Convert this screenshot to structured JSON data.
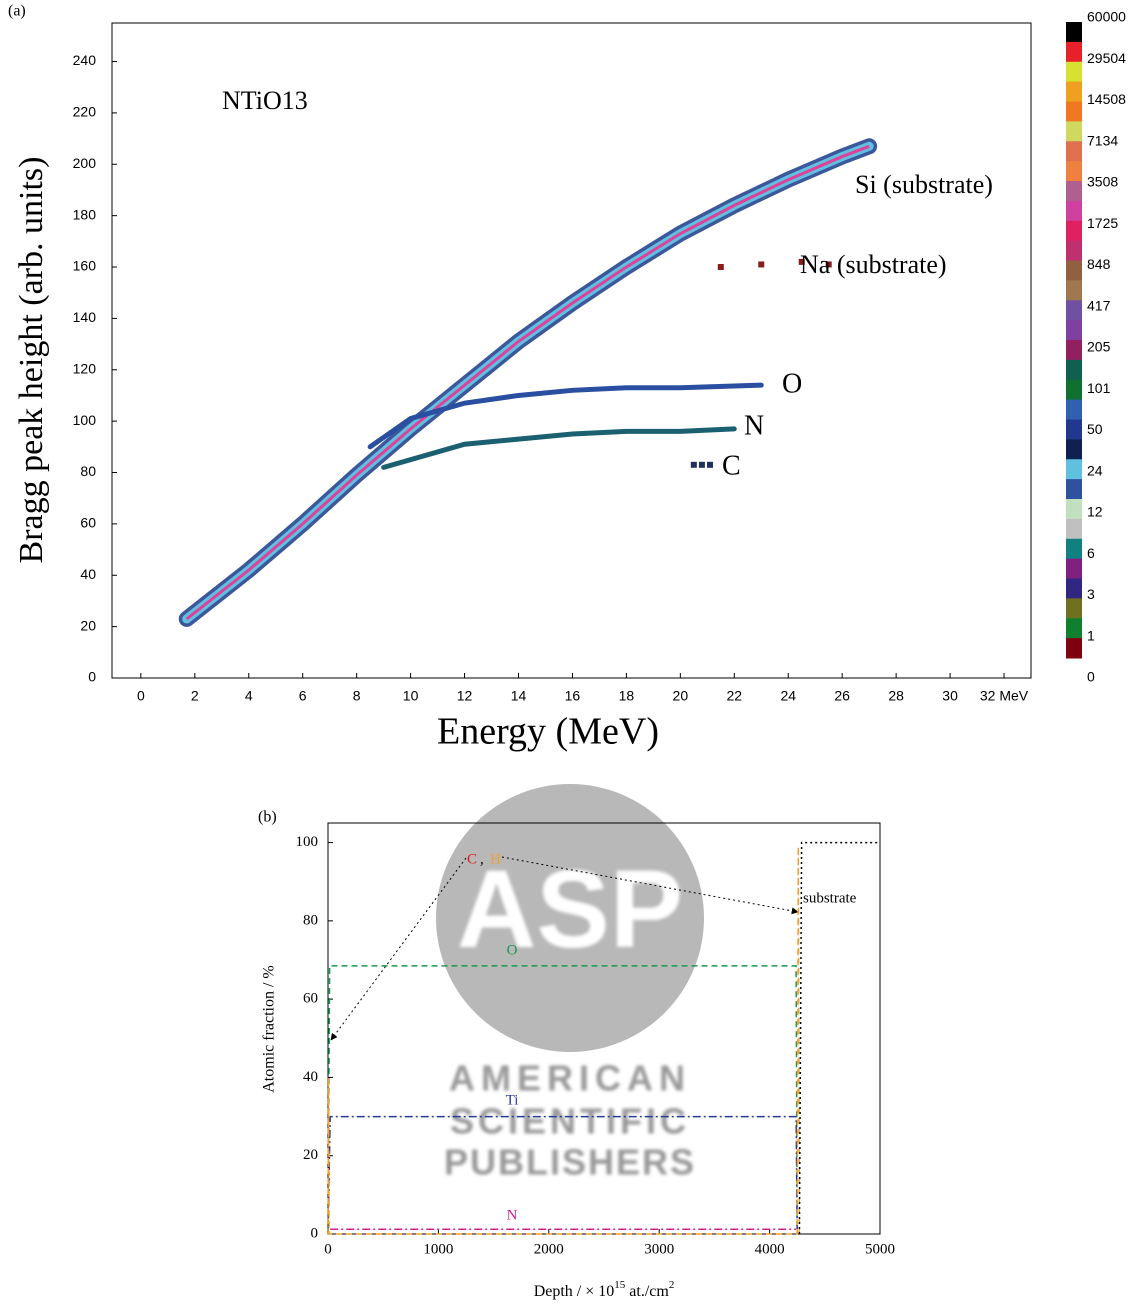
{
  "chart_data": [
    {
      "type": "histogram2d",
      "panel_label": "(a)",
      "sample": "NTiO13",
      "x_label": "Energy (MeV)",
      "y_label": "Bragg peak height (arb. units)",
      "xlim": [
        -1.07,
        33
      ],
      "ylim": [
        0,
        255
      ],
      "xticks": [
        0,
        2,
        4,
        6,
        8,
        10,
        12,
        14,
        16,
        18,
        20,
        22,
        24,
        26,
        28,
        30,
        {
          "value": 32,
          "label": "32 MeV"
        }
      ],
      "yticks": [
        0,
        20,
        40,
        60,
        80,
        100,
        120,
        140,
        160,
        180,
        200,
        220,
        240
      ],
      "series": [
        {
          "name": "Si (substrate)",
          "color": "#e0409a",
          "marker": "band",
          "x": [
            1.7,
            4,
            6,
            8,
            10,
            12,
            14,
            16,
            18,
            20,
            22,
            24,
            26,
            27
          ],
          "values": [
            23,
            42,
            60,
            79,
            97,
            114,
            131,
            146,
            160,
            173,
            184,
            194,
            203,
            207
          ]
        },
        {
          "name": "Na (substrate)",
          "color": "#8b1a1a",
          "marker": "square",
          "x": [
            21.5,
            23,
            24.5,
            25.5
          ],
          "values": [
            160,
            161,
            162,
            161
          ]
        },
        {
          "name": "O",
          "color": "#2a4fa0",
          "marker": "line",
          "x": [
            8.5,
            10,
            12,
            14,
            16,
            18,
            20,
            23
          ],
          "values": [
            90,
            101,
            107,
            110,
            112,
            113,
            113,
            114
          ]
        },
        {
          "name": "N",
          "color": "#1a6070",
          "marker": "line",
          "x": [
            9,
            12,
            14,
            16,
            18,
            20,
            22
          ],
          "values": [
            82,
            91,
            93,
            95,
            96,
            96,
            97
          ]
        },
        {
          "name": "C",
          "color": "#203060",
          "marker": "square",
          "x": [
            20.5,
            20.8,
            21.1
          ],
          "values": [
            83,
            83,
            83
          ]
        }
      ],
      "colorbar": {
        "ticks": [
          60000,
          29504,
          14508,
          7134,
          3508,
          1725,
          848,
          417,
          205,
          101,
          50,
          24,
          12,
          6,
          3,
          1,
          0
        ],
        "colors": [
          "#000000",
          "#e8202a",
          "#d8e030",
          "#f0a020",
          "#f07820",
          "#d0d860",
          "#e07050",
          "#f08040",
          "#b06090",
          "#d040a0",
          "#e02060",
          "#c03070",
          "#906040",
          "#a07850",
          "#7050a0",
          "#8040a0",
          "#902060",
          "#106050",
          "#107030",
          "#3060b0",
          "#203890",
          "#102050",
          "#60c0e0",
          "#3050a0",
          "#c0e0c0",
          "#c0c0c0",
          "#108080",
          "#802080",
          "#302880",
          "#707020",
          "#108030",
          "#800010"
        ]
      }
    },
    {
      "type": "line",
      "panel_label": "(b)",
      "x_label": [
        "Depth / × 10",
        "15",
        " at./cm",
        "2"
      ],
      "y_label": "Atomic fraction / %",
      "xlim": [
        0,
        5000
      ],
      "ylim": [
        0,
        105
      ],
      "xticks": [
        0,
        1000,
        2000,
        3000,
        4000,
        5000
      ],
      "yticks": [
        0,
        20,
        40,
        60,
        80,
        100
      ],
      "series": [
        {
          "name": "O",
          "color": "#1a9a50",
          "style": "dashed",
          "x": [
            0,
            15,
            4240,
            4250
          ],
          "values": [
            0,
            68.5,
            68.5,
            0
          ]
        },
        {
          "name": "Ti",
          "color": "#2a3a9a",
          "style": "dashdot",
          "x": [
            0,
            20,
            4240,
            4250
          ],
          "values": [
            0,
            30,
            30,
            0
          ]
        },
        {
          "name": "N",
          "color": "#d02090",
          "style": "dashdot",
          "x": [
            20,
            4240
          ],
          "values": [
            1.2,
            1.2
          ]
        },
        {
          "name": "H",
          "color": "#f0a030",
          "style": "dashed",
          "x": [
            0,
            5,
            10,
            4250,
            4260,
            4270
          ],
          "values": [
            0,
            40,
            0,
            0,
            99,
            0
          ]
        },
        {
          "name": "substrate",
          "color": "#000000",
          "style": "dotted",
          "x": [
            4270,
            4290,
            5000
          ],
          "values": [
            0,
            100,
            100
          ]
        }
      ],
      "annotations": [
        {
          "text": "C",
          "color": "#e02020"
        },
        {
          "text": ",",
          "color": "#000000"
        }
      ],
      "watermark": {
        "logo": "ASP",
        "lines": [
          "AMERICAN",
          "SCIENTIFIC",
          "PUBLISHERS"
        ]
      }
    }
  ]
}
